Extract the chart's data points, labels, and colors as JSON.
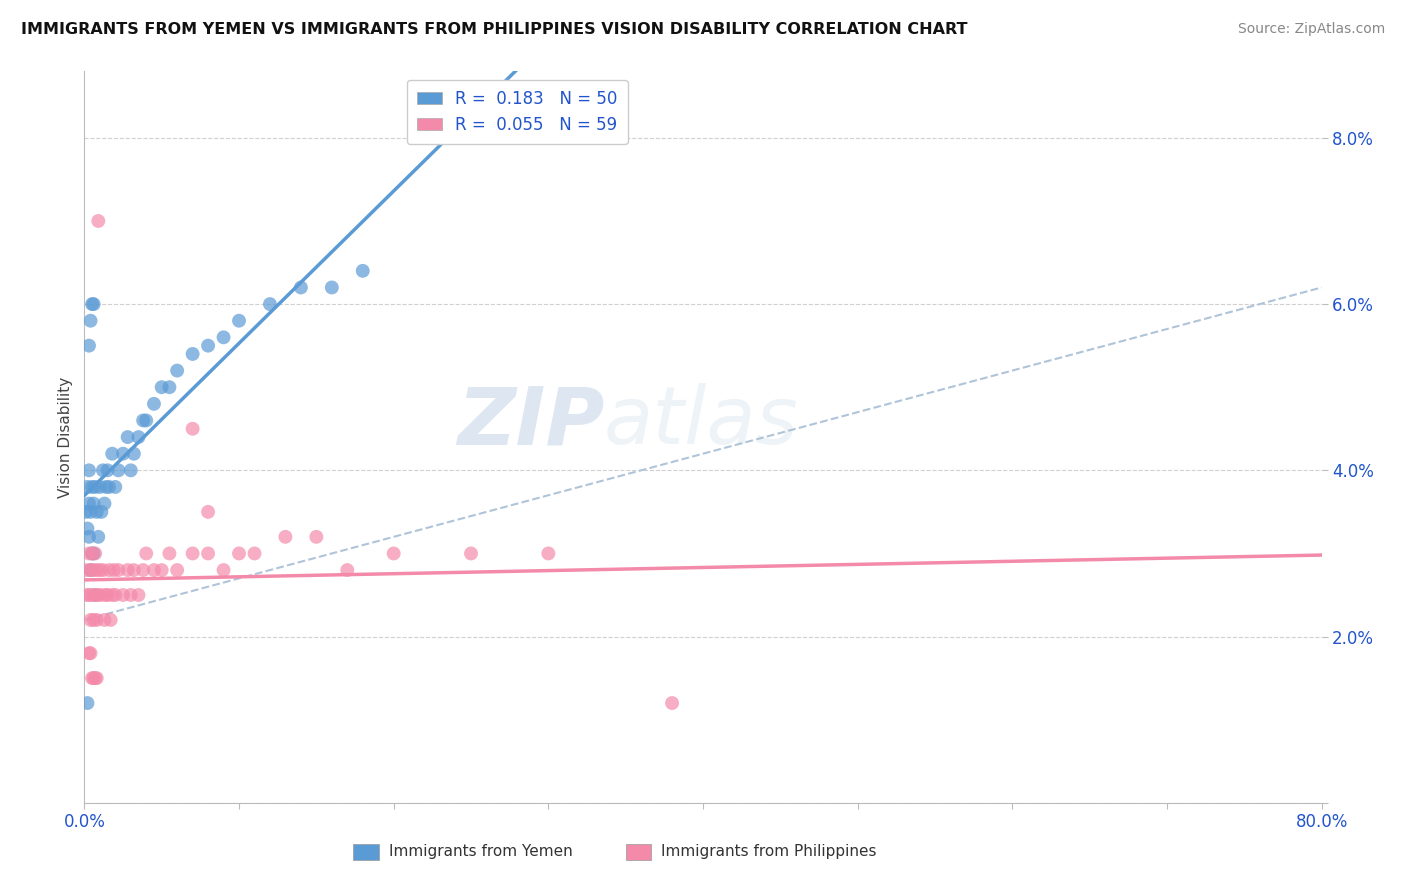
{
  "title": "IMMIGRANTS FROM YEMEN VS IMMIGRANTS FROM PHILIPPINES VISION DISABILITY CORRELATION CHART",
  "source": "Source: ZipAtlas.com",
  "ylabel": "Vision Disability",
  "xlim": [
    0.0,
    0.8
  ],
  "ylim": [
    0.0,
    0.088
  ],
  "xticks": [
    0.0,
    0.1,
    0.2,
    0.3,
    0.4,
    0.5,
    0.6,
    0.7,
    0.8
  ],
  "xtick_labels": [
    "0.0%",
    "",
    "",
    "",
    "",
    "",
    "",
    "",
    "80.0%"
  ],
  "yticks": [
    0.0,
    0.02,
    0.04,
    0.06,
    0.08
  ],
  "ytick_labels": [
    "",
    "2.0%",
    "4.0%",
    "6.0%",
    "8.0%"
  ],
  "yemen_color": "#5b9bd5",
  "philippines_color": "#f48aaa",
  "yemen_R": 0.183,
  "yemen_N": 50,
  "philippines_R": 0.055,
  "philippines_N": 59,
  "yemen_x": [
    0.001,
    0.002,
    0.002,
    0.003,
    0.003,
    0.003,
    0.004,
    0.004,
    0.005,
    0.005,
    0.006,
    0.006,
    0.007,
    0.007,
    0.008,
    0.009,
    0.01,
    0.011,
    0.012,
    0.013,
    0.014,
    0.015,
    0.016,
    0.018,
    0.02,
    0.022,
    0.025,
    0.028,
    0.03,
    0.032,
    0.035,
    0.038,
    0.04,
    0.045,
    0.05,
    0.055,
    0.06,
    0.07,
    0.08,
    0.09,
    0.1,
    0.12,
    0.14,
    0.16,
    0.18,
    0.003,
    0.004,
    0.005,
    0.006,
    0.002
  ],
  "yemen_y": [
    0.035,
    0.038,
    0.033,
    0.036,
    0.032,
    0.04,
    0.028,
    0.035,
    0.03,
    0.038,
    0.036,
    0.03,
    0.038,
    0.025,
    0.035,
    0.032,
    0.038,
    0.035,
    0.04,
    0.036,
    0.038,
    0.04,
    0.038,
    0.042,
    0.038,
    0.04,
    0.042,
    0.044,
    0.04,
    0.042,
    0.044,
    0.046,
    0.046,
    0.048,
    0.05,
    0.05,
    0.052,
    0.054,
    0.055,
    0.056,
    0.058,
    0.06,
    0.062,
    0.062,
    0.064,
    0.055,
    0.058,
    0.06,
    0.06,
    0.012
  ],
  "philippines_x": [
    0.001,
    0.002,
    0.003,
    0.003,
    0.004,
    0.004,
    0.005,
    0.005,
    0.006,
    0.006,
    0.007,
    0.007,
    0.008,
    0.008,
    0.009,
    0.01,
    0.011,
    0.012,
    0.013,
    0.014,
    0.015,
    0.016,
    0.017,
    0.018,
    0.019,
    0.02,
    0.022,
    0.025,
    0.028,
    0.03,
    0.032,
    0.035,
    0.038,
    0.04,
    0.045,
    0.05,
    0.055,
    0.06,
    0.07,
    0.08,
    0.09,
    0.1,
    0.11,
    0.13,
    0.15,
    0.17,
    0.2,
    0.25,
    0.3,
    0.07,
    0.08,
    0.003,
    0.004,
    0.005,
    0.006,
    0.007,
    0.008,
    0.38,
    0.009
  ],
  "philippines_y": [
    0.028,
    0.025,
    0.025,
    0.03,
    0.022,
    0.028,
    0.025,
    0.03,
    0.022,
    0.028,
    0.025,
    0.03,
    0.022,
    0.028,
    0.025,
    0.028,
    0.025,
    0.028,
    0.022,
    0.025,
    0.025,
    0.028,
    0.022,
    0.025,
    0.028,
    0.025,
    0.028,
    0.025,
    0.028,
    0.025,
    0.028,
    0.025,
    0.028,
    0.03,
    0.028,
    0.028,
    0.03,
    0.028,
    0.03,
    0.03,
    0.028,
    0.03,
    0.03,
    0.032,
    0.032,
    0.028,
    0.03,
    0.03,
    0.03,
    0.045,
    0.035,
    0.018,
    0.018,
    0.015,
    0.015,
    0.015,
    0.015,
    0.012,
    0.07
  ],
  "watermark_zip": "ZIP",
  "watermark_atlas": "atlas",
  "background_color": "#ffffff",
  "grid_color": "#d0d0d0",
  "legend_label_color": "#2255cc",
  "tick_color": "#2255cc"
}
